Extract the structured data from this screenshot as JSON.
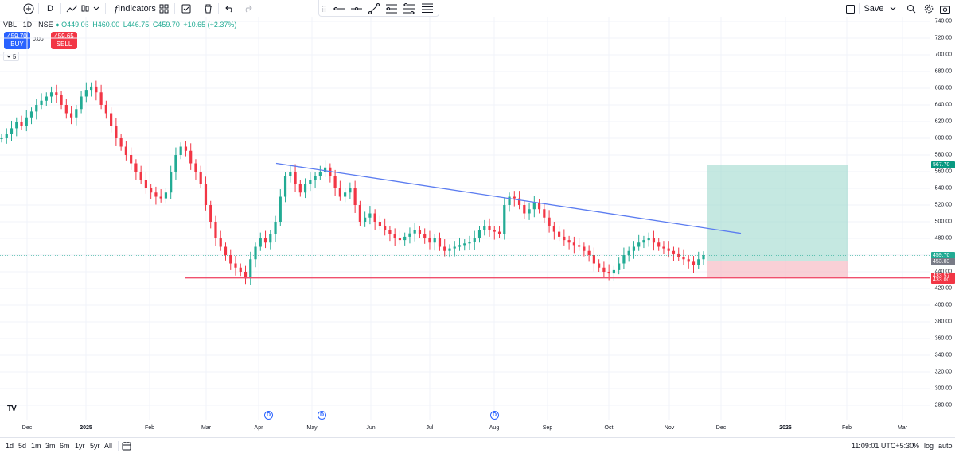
{
  "toolbar": {
    "interval": "D",
    "indicators_label": "Indicators",
    "save_label": "Save"
  },
  "legend": {
    "symbol": "VBL · 1D · NSE",
    "open": "O449.05",
    "high": "H460.00",
    "low": "L446.75",
    "close": "C459.70",
    "change": "+10.65 (+2.37%)"
  },
  "trade": {
    "buy_price": "459.70",
    "buy_label": "BUY",
    "sell_price": "459.65",
    "sell_label": "SELL",
    "spread": "0.05",
    "interval_count": "5"
  },
  "price_scale": {
    "ticks": [
      "740.00",
      "720.00",
      "700.00",
      "680.00",
      "660.00",
      "640.00",
      "620.00",
      "600.00",
      "580.00",
      "560.00",
      "540.00",
      "520.00",
      "500.00",
      "480.00",
      "460.00",
      "440.00",
      "420.00",
      "400.00",
      "380.00",
      "360.00",
      "340.00",
      "320.00",
      "300.00",
      "280.00"
    ],
    "badges": {
      "target": "567.70",
      "last": "459.70",
      "entry": "453.03",
      "stop": "433.57",
      "support": "433.00"
    },
    "colors": {
      "target": "#089981",
      "last": "#22ab94",
      "entry": "#787b86",
      "stop": "#f23645",
      "support": "#f23645"
    }
  },
  "time_scale": {
    "labels": [
      "Dec",
      "2025",
      "Feb",
      "Mar",
      "Apr",
      "May",
      "Jun",
      "Jul",
      "Aug",
      "Sep",
      "Oct",
      "Nov",
      "Dec",
      "2026",
      "Feb",
      "Mar"
    ]
  },
  "dividends": [
    "D",
    "D",
    "D"
  ],
  "bottom_bar": {
    "ranges": [
      "1d",
      "5d",
      "1m",
      "3m",
      "6m",
      "1yr",
      "5yr",
      "All"
    ],
    "clock": "11:09:01 UTC+5:30",
    "percent": "%",
    "log": "log",
    "auto": "auto"
  },
  "chart_data": {
    "type": "candlestick",
    "symbol": "VBL",
    "ylim": [
      270,
      745
    ],
    "series": [
      {
        "values": [
          600,
          605,
          612,
          620,
          615,
          625,
          632,
          640,
          645,
          650,
          655,
          652,
          640,
          630,
          625,
          635,
          650,
          658,
          662,
          655,
          640,
          630,
          615,
          600,
          590,
          580,
          570,
          560,
          550,
          540,
          535,
          530,
          528,
          535,
          560,
          580,
          590,
          585,
          570,
          560,
          545,
          520,
          500,
          480,
          470,
          460,
          450,
          445,
          440,
          432,
          455,
          470,
          480,
          475,
          485,
          500,
          530,
          555,
          560,
          545,
          535,
          545,
          550,
          555,
          560,
          565,
          555,
          540,
          530,
          535,
          540,
          520,
          500,
          505,
          510,
          500,
          495,
          490,
          485,
          480,
          478,
          482,
          486,
          490,
          485,
          480,
          475,
          480,
          470,
          465,
          468,
          470,
          472,
          474,
          476,
          480,
          490,
          495,
          490,
          488,
          485,
          520,
          530,
          528,
          520,
          510,
          515,
          522,
          515,
          505,
          495,
          488,
          482,
          478,
          475,
          472,
          470,
          465,
          460,
          450,
          445,
          440,
          438,
          442,
          450,
          460,
          465,
          470,
          475,
          478,
          480,
          475,
          470,
          468,
          465,
          462,
          458,
          455,
          452,
          448,
          455,
          459.7
        ]
      }
    ],
    "trendline": {
      "points": [
        [
          0.29,
          570
        ],
        [
          0.78,
          485
        ]
      ]
    },
    "support": 433,
    "position": {
      "entry": 453.03,
      "target": 567.7,
      "stop": 433.57
    }
  }
}
